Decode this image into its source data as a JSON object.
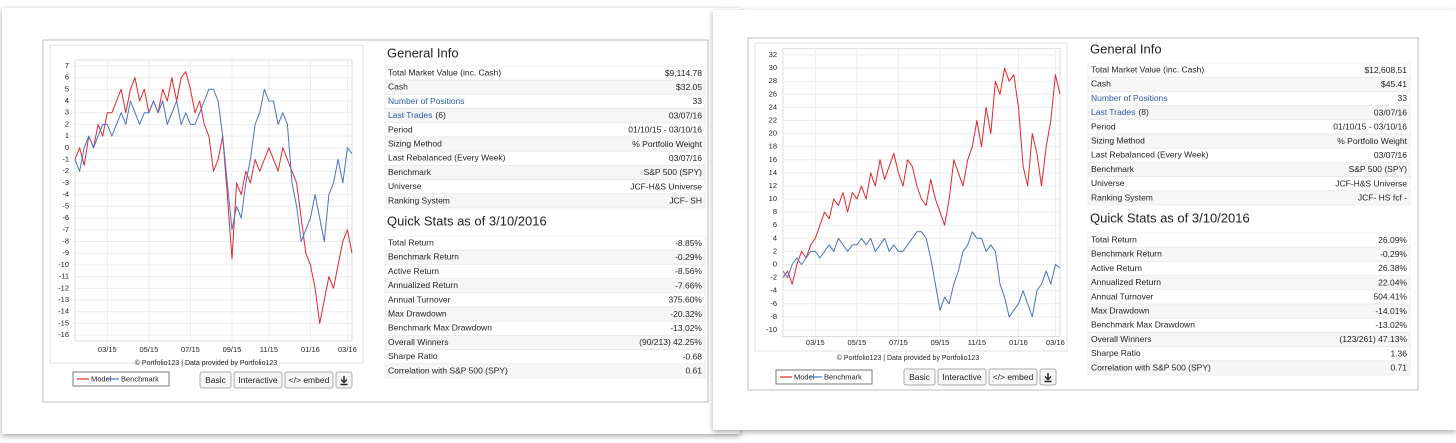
{
  "chart_data": [
    {
      "type": "line",
      "categories": [
        null,
        null,
        null,
        null,
        null,
        null,
        null,
        "03/15",
        null,
        null,
        null,
        null,
        null,
        null,
        null,
        null,
        "05/15",
        null,
        null,
        null,
        null,
        null,
        null,
        null,
        null,
        "07/15",
        null,
        null,
        null,
        null,
        null,
        null,
        null,
        null,
        "09/15",
        null,
        null,
        null,
        null,
        null,
        null,
        null,
        "11/15",
        null,
        null,
        null,
        null,
        null,
        null,
        null,
        null,
        "01/16",
        null,
        null,
        null,
        null,
        null,
        null,
        null,
        "03/16",
        null
      ],
      "series": [
        {
          "name": "Model",
          "color": "#e3272b",
          "values": [
            -1,
            0,
            -1.5,
            1,
            0,
            2,
            1,
            3,
            3,
            4,
            5,
            3,
            5,
            6,
            4,
            5,
            3,
            4,
            3,
            5,
            4,
            6,
            4,
            6,
            6.5,
            5,
            3,
            4,
            2,
            1,
            -2,
            -1,
            1,
            -4,
            -9.5,
            -3,
            -4,
            -2,
            -3,
            -1,
            -2,
            -1,
            0,
            -1,
            -2,
            0,
            -1,
            -2,
            -3,
            -6,
            -9,
            -10,
            -12,
            -15,
            -13,
            -11,
            -12,
            -10,
            -8,
            -7,
            -9
          ]
        },
        {
          "name": "Benchmark",
          "color": "#4a72c8",
          "values": [
            -1,
            -2,
            0,
            1,
            0,
            1,
            2,
            2,
            1,
            2,
            3,
            2,
            4,
            3,
            2,
            3,
            3,
            4,
            3,
            4,
            2,
            3,
            4,
            2,
            3,
            2,
            2,
            3,
            4,
            5,
            5,
            4,
            1,
            -3,
            -7,
            -5,
            -6,
            -3,
            -1,
            2,
            3,
            5,
            4,
            4,
            2,
            3,
            2,
            -3,
            -5,
            -8,
            -7,
            -6,
            -4,
            -6,
            -8,
            -4,
            -3,
            -1,
            -3,
            0,
            -0.5
          ]
        }
      ],
      "ylim": [
        -16.5,
        7.5
      ],
      "yticks": [
        -16,
        -15,
        -14,
        -13,
        -12,
        -11,
        -10,
        -9,
        -8,
        -7,
        -6,
        -5,
        -4,
        -3,
        -2,
        -1,
        0,
        1,
        2,
        3,
        4,
        5,
        6,
        7
      ],
      "grid": true
    },
    {
      "type": "line",
      "categories": [
        null,
        null,
        null,
        null,
        null,
        null,
        null,
        "03/15",
        null,
        null,
        null,
        null,
        null,
        null,
        null,
        null,
        "05/15",
        null,
        null,
        null,
        null,
        null,
        null,
        null,
        null,
        "07/15",
        null,
        null,
        null,
        null,
        null,
        null,
        null,
        null,
        "09/15",
        null,
        null,
        null,
        null,
        null,
        null,
        null,
        "11/15",
        null,
        null,
        null,
        null,
        null,
        null,
        null,
        null,
        "01/16",
        null,
        null,
        null,
        null,
        null,
        null,
        null,
        "03/16",
        null
      ],
      "series": [
        {
          "name": "Model",
          "color": "#e3272b",
          "values": [
            -2,
            -1,
            -3,
            0,
            2,
            1,
            3,
            4,
            6,
            8,
            7,
            10,
            9,
            11,
            8,
            11,
            10,
            12,
            10,
            14,
            12,
            16,
            13,
            15,
            17,
            14,
            12,
            16,
            15,
            12,
            10,
            9,
            13,
            10,
            8,
            6,
            10,
            16,
            14,
            12,
            16,
            18,
            22,
            18,
            24,
            20,
            28,
            26,
            30,
            28,
            29,
            24,
            15,
            12,
            20,
            17,
            12,
            18,
            22,
            29,
            26
          ]
        },
        {
          "name": "Benchmark",
          "color": "#4a72c8",
          "values": [
            -1,
            -2,
            0,
            1,
            0,
            1,
            2,
            2,
            1,
            2,
            3,
            2,
            4,
            3,
            2,
            3,
            3,
            4,
            3,
            4,
            2,
            3,
            4,
            2,
            3,
            2,
            2,
            3,
            4,
            5,
            5,
            4,
            1,
            -3,
            -7,
            -5,
            -6,
            -3,
            -1,
            2,
            3,
            5,
            4,
            4,
            2,
            3,
            2,
            -3,
            -5,
            -8,
            -7,
            -6,
            -4,
            -6,
            -8,
            -4,
            -3,
            -1,
            -3,
            0,
            -0.5
          ]
        }
      ],
      "ylim": [
        -11,
        33
      ],
      "yticks": [
        -10,
        -8,
        -6,
        -4,
        -2,
        0,
        2,
        4,
        6,
        8,
        10,
        12,
        14,
        16,
        18,
        20,
        22,
        24,
        26,
        28,
        30,
        32
      ],
      "grid": true
    }
  ],
  "panels": [
    {
      "credit": "© Portfolio123 | Data provided by Portfolio123",
      "buttons": [
        "Basic",
        "Interactive",
        "</> embed"
      ],
      "general_info": {
        "title": "General Info",
        "rows": [
          {
            "label": "Total Market Value (inc. Cash)",
            "value": "$9,114.78"
          },
          {
            "label": "Cash",
            "value": "$32.05"
          },
          {
            "label": "Number of Positions",
            "value": "33"
          },
          {
            "label": "Last Trades",
            "note": "(6)",
            "value": "03/07/16"
          },
          {
            "label": "Period",
            "value": "01/10/15 - 03/10/16"
          },
          {
            "label": "Sizing Method",
            "value": "% Portfolio Weight"
          },
          {
            "label": "Last Rebalanced (Every Week)",
            "value": "03/07/16"
          },
          {
            "label": "Benchmark",
            "value": "S&P 500 (SPY)"
          },
          {
            "label": "Universe",
            "value": "JCF-H&S Universe"
          },
          {
            "label": "Ranking System",
            "value": "JCF- SH"
          }
        ]
      },
      "quick_stats": {
        "title": "Quick Stats as of 3/10/2016",
        "rows": [
          {
            "label": "Total Return",
            "value": "-8.85%"
          },
          {
            "label": "Benchmark Return",
            "value": "-0.29%"
          },
          {
            "label": "Active Return",
            "value": "-8.56%"
          },
          {
            "label": "Annualized Return",
            "value": "-7.66%"
          },
          {
            "label": "Annual Turnover",
            "value": "375.60%"
          },
          {
            "label": "Max Drawdown",
            "value": "-20.32%"
          },
          {
            "label": "Benchmark Max Drawdown",
            "value": "-13.02%"
          },
          {
            "label": "Overall Winners",
            "value": "(90/213) 42.25%"
          },
          {
            "label": "Sharpe Ratio",
            "value": "-0.68"
          },
          {
            "label": "Correlation with S&P 500 (SPY)",
            "value": "0.61"
          }
        ]
      }
    },
    {
      "credit": "© Portfolio123 | Data provided by Portfolio123",
      "buttons": [
        "Basic",
        "Interactive",
        "</> embed"
      ],
      "general_info": {
        "title": "General Info",
        "rows": [
          {
            "label": "Total Market Value (inc. Cash)",
            "value": "$12,608.51"
          },
          {
            "label": "Cash",
            "value": "$45.41"
          },
          {
            "label": "Number of Positions",
            "value": "33"
          },
          {
            "label": "Last Trades",
            "note": "(8)",
            "value": "03/07/16"
          },
          {
            "label": "Period",
            "value": "01/10/15 - 03/10/16"
          },
          {
            "label": "Sizing Method",
            "value": "% Portfolio Weight"
          },
          {
            "label": "Last Rebalanced (Every Week)",
            "value": "03/07/16"
          },
          {
            "label": "Benchmark",
            "value": "S&P 500 (SPY)"
          },
          {
            "label": "Universe",
            "value": "JCF-H&S Universe"
          },
          {
            "label": "Ranking System",
            "value": "JCF- HS fcf -"
          }
        ]
      },
      "quick_stats": {
        "title": "Quick Stats as of 3/10/2016",
        "rows": [
          {
            "label": "Total Return",
            "value": "26.09%"
          },
          {
            "label": "Benchmark Return",
            "value": "-0.29%"
          },
          {
            "label": "Active Return",
            "value": "26.38%"
          },
          {
            "label": "Annualized Return",
            "value": "22.04%"
          },
          {
            "label": "Annual Turnover",
            "value": "504.41%"
          },
          {
            "label": "Max Drawdown",
            "value": "-14.01%"
          },
          {
            "label": "Benchmark Max Drawdown",
            "value": "-13.02%"
          },
          {
            "label": "Overall Winners",
            "value": "(123/261) 47.13%"
          },
          {
            "label": "Sharpe Ratio",
            "value": "1.36"
          },
          {
            "label": "Correlation with S&P 500 (SPY)",
            "value": "0.71"
          }
        ]
      }
    }
  ]
}
